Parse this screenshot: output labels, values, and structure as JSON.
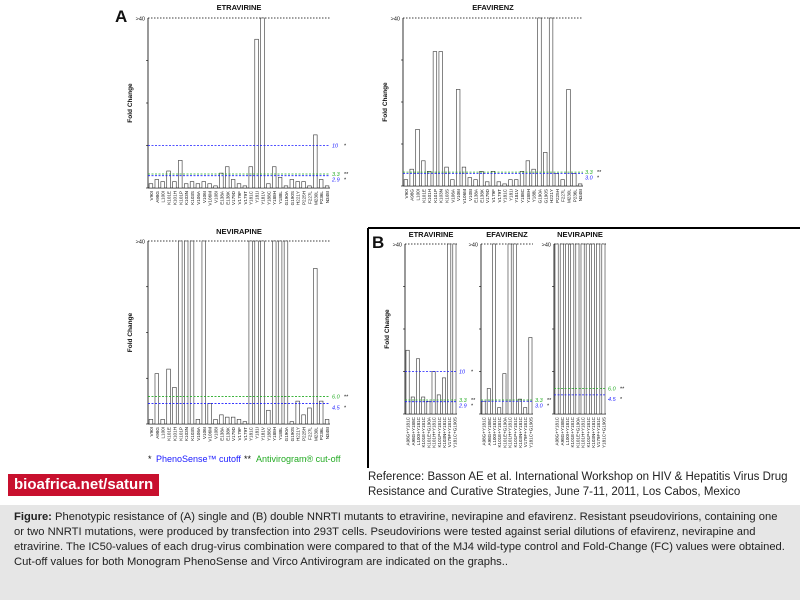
{
  "panels": {
    "a": "A",
    "b": "B"
  },
  "legend": {
    "phenosense_marker": "*",
    "phenosense_label": "PhenoSense™ cutoff",
    "antivirogram_marker": "**",
    "antivirogram_label": "Antivirogram® cut-off"
  },
  "brand_text": "bioafrica.net/saturn",
  "reference_text": "Reference: Basson AE et al. International Workshop on HIV & Hepatitis Virus Drug Resistance and Curative Strategies, June 7-11, 2011, Los Cabos, Mexico",
  "caption": {
    "label": "Figure:",
    "text": "Phenotypic resistance of (A) single and (B) double NNRTI mutants to etravirine, nevirapine and efavirenz. Resistant pseudovirions, containing one or two NNRTI mutations, were produced by transfection into 293T cells. Pseudovirions were tested against serial dilutions of efavirenz, nevirapine and etravirine. The IC50-values of each drug-virus combination were compared to that of the MJ4 wild-type control and Fold-Change (FC) values were obtained. Cut-off values for both Monogram PhenoSense and Virco Antivirogram are indicated on the graphs.."
  },
  "colors": {
    "blue_cutoff": "#1a1aff",
    "green_cutoff": "#22aa22",
    "bar_fill": "#ffffff",
    "brand_bg": "#c8102e"
  },
  "chart_data": [
    {
      "type": "bar",
      "title": "ETRAVIRINE",
      "ylabel": "Fold Change",
      "ylim": [
        0,
        40
      ],
      "top_label": ">40",
      "categories": [
        "V90I",
        "A98G",
        "L100I",
        "K101E",
        "K101H",
        "K101P",
        "K103N",
        "K103S",
        "V106A",
        "V106I",
        "V106M",
        "V108I",
        "E138A",
        "E138K",
        "V179D",
        "V179F",
        "V179T",
        "Y181C",
        "Y181I",
        "Y181V",
        "Y188C",
        "Y188H",
        "Y188L",
        "G190A",
        "G190S",
        "H221Y",
        "P225H",
        "F227L",
        "M230L",
        "P236L",
        "N348I"
      ],
      "values": [
        1,
        2,
        1.5,
        4,
        1.5,
        6.5,
        1,
        1.5,
        1,
        1.5,
        1,
        0.5,
        3.5,
        5,
        2,
        1,
        0.5,
        5,
        35,
        40,
        1,
        5,
        2.5,
        0.5,
        2,
        1.5,
        1.5,
        0.5,
        12.5,
        2,
        0.5
      ],
      "cutoffs": [
        {
          "value": 10,
          "label": "10",
          "marker": "*",
          "color": "#1a1aff"
        },
        {
          "value": 3.3,
          "label": "3.3",
          "marker": "**",
          "color": "#22aa22"
        },
        {
          "value": 2.9,
          "label": "2.9",
          "marker": "*",
          "color": "#1a1aff"
        }
      ]
    },
    {
      "type": "bar",
      "title": "EFAVIRENZ",
      "ylabel": "Fold Change",
      "ylim": [
        0,
        40
      ],
      "top_label": ">40",
      "categories": [
        "V90I",
        "A98G",
        "L100I",
        "K101E",
        "K101H",
        "K101P",
        "K103N",
        "K103S",
        "V106A",
        "V106I",
        "V106M",
        "V108I",
        "E138A",
        "E138K",
        "V179D",
        "V179F",
        "V179T",
        "Y181C",
        "Y181I",
        "Y181V",
        "Y188C",
        "Y188H",
        "Y188L",
        "G190A",
        "G190S",
        "H221Y",
        "P225H",
        "F227L",
        "M230L",
        "P236L",
        "N348I"
      ],
      "values": [
        1.5,
        4,
        13.5,
        6,
        3.5,
        32,
        32,
        4.5,
        1.5,
        23,
        4.5,
        2,
        1.5,
        3.5,
        1,
        3.5,
        1,
        0.5,
        1.5,
        1.5,
        3.5,
        6,
        4,
        40,
        8,
        40,
        3,
        1.5,
        23,
        3,
        0.5
      ],
      "cutoffs": [
        {
          "value": 3.3,
          "label": "3.3",
          "marker": "**",
          "color": "#22aa22"
        },
        {
          "value": 3.0,
          "label": "3.0",
          "marker": "*",
          "color": "#1a1aff"
        }
      ]
    },
    {
      "type": "bar",
      "title": "NEVIRAPINE",
      "ylabel": "Fold Change",
      "ylim": [
        0,
        40
      ],
      "top_label": ">40",
      "categories": [
        "V90I",
        "A98G",
        "L100I",
        "K101E",
        "K101H",
        "K101P",
        "K103N",
        "K103S",
        "V106A",
        "V106I",
        "V106M",
        "V108I",
        "E138A",
        "E138K",
        "V179D",
        "V179F",
        "V179T",
        "Y181C",
        "Y181I",
        "Y181V",
        "Y188C",
        "Y188H",
        "Y188L",
        "G190A",
        "G190S",
        "H221Y",
        "P225H",
        "F227L",
        "M230L",
        "P236L",
        "N348I"
      ],
      "values": [
        1,
        11,
        1,
        12,
        8,
        40,
        40,
        40,
        1,
        40,
        4.5,
        1,
        2,
        1.5,
        1.5,
        1,
        0.5,
        40,
        40,
        40,
        3,
        40,
        40,
        40,
        0.5,
        5,
        2,
        3.5,
        34,
        5,
        1
      ],
      "cutoffs": [
        {
          "value": 6.0,
          "label": "6.0",
          "marker": "**",
          "color": "#22aa22"
        },
        {
          "value": 4.5,
          "label": "4.5",
          "marker": "*",
          "color": "#1a1aff"
        }
      ]
    },
    {
      "type": "bar",
      "title": "ETRAVIRINE",
      "ylabel": "Fold Change",
      "ylim": [
        0,
        40
      ],
      "top_label": ">40",
      "categories": [
        "A98G+Y181C",
        "A98G+Y188C",
        "L100I+Y181C",
        "K101E+Y181C",
        "K101E+G190A",
        "K101H+Y181C",
        "K101P+Y181C",
        "K103N+Y181C",
        "V179F+Y181C",
        "Y181C+G190S"
      ],
      "values": [
        15,
        4,
        13,
        4,
        3,
        10,
        4.5,
        8.5,
        40,
        40
      ],
      "cutoffs": [
        {
          "value": 10,
          "label": "10",
          "marker": "*",
          "color": "#1a1aff"
        },
        {
          "value": 3.3,
          "label": "3.3",
          "marker": "**",
          "color": "#22aa22"
        },
        {
          "value": 2.9,
          "label": "2.9",
          "marker": "*",
          "color": "#1a1aff"
        }
      ]
    },
    {
      "type": "bar",
      "title": "EFAVIRENZ",
      "ylabel": "",
      "ylim": [
        0,
        40
      ],
      "top_label": ">40",
      "categories": [
        "A98G+Y181C",
        "A98G+Y188C",
        "L100I+Y181C",
        "K101E+Y181C",
        "K101E+G190A",
        "K101H+Y181C",
        "K101P+Y181C",
        "K103N+Y181C",
        "V179F+Y181C",
        "Y181C+G190S"
      ],
      "values": [
        3,
        6,
        40,
        1.5,
        9.5,
        40,
        40,
        3.5,
        1.5,
        18
      ],
      "cutoffs": [
        {
          "value": 3.3,
          "label": "3.3",
          "marker": "**",
          "color": "#22aa22"
        },
        {
          "value": 3.0,
          "label": "3.0",
          "marker": "*",
          "color": "#1a1aff"
        }
      ]
    },
    {
      "type": "bar",
      "title": "NEVIRAPINE",
      "ylabel": "",
      "ylim": [
        0,
        40
      ],
      "top_label": ">40",
      "categories": [
        "A98G+Y181C",
        "A98G+Y188C",
        "L100I+Y181C",
        "K101E+Y181C",
        "K101E+G190A",
        "K101H+Y181C",
        "K101P+Y181C",
        "K103N+Y181C",
        "V179F+Y181C",
        "Y181C+G190S"
      ],
      "values": [
        40,
        40,
        40,
        40,
        40,
        40,
        40,
        40,
        40,
        40
      ],
      "cutoffs": [
        {
          "value": 6.0,
          "label": "6.0",
          "marker": "**",
          "color": "#22aa22"
        },
        {
          "value": 4.5,
          "label": "4.5",
          "marker": "*",
          "color": "#1a1aff"
        }
      ]
    }
  ]
}
